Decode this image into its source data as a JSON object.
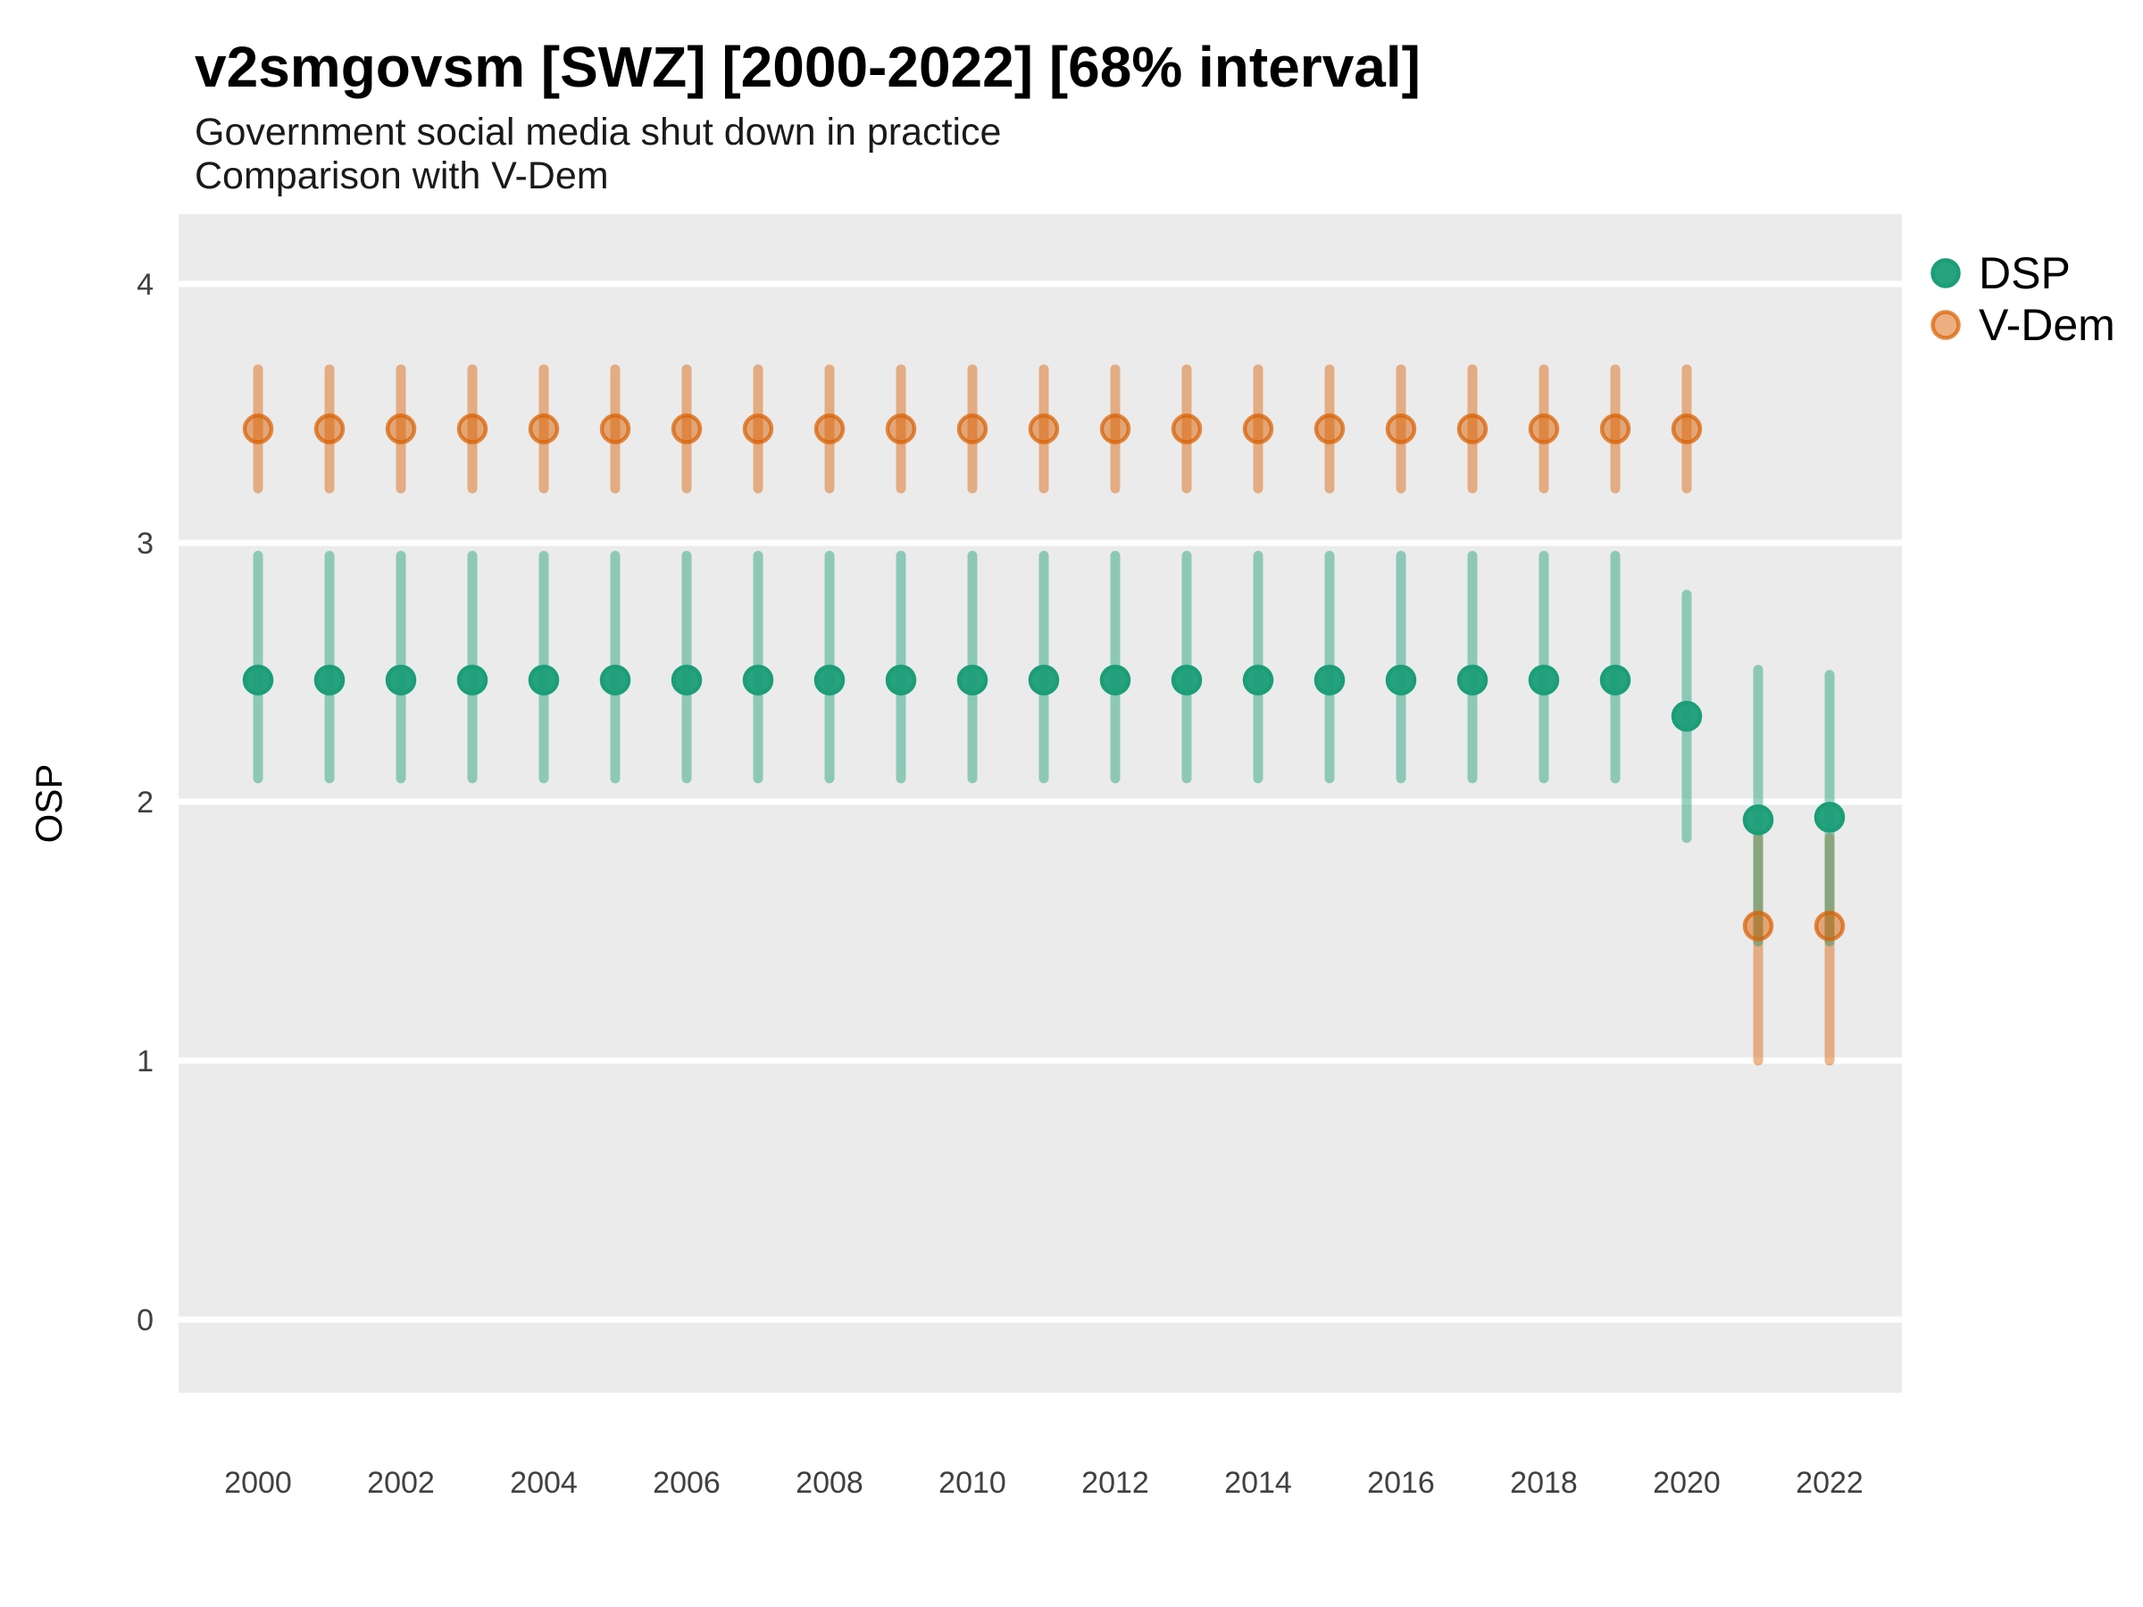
{
  "chart_data": {
    "type": "pointrange",
    "title": "v2smgovsm [SWZ] [2000-2022] [68% interval]",
    "subtitle": "Government social media shut down in practice",
    "subtitle2": "Comparison with V-Dem",
    "ylabel": "OSP",
    "interval": "68%",
    "country": "SWZ",
    "variable": "v2smgovsm",
    "x_tick_labels": [
      2000,
      2002,
      2004,
      2006,
      2008,
      2010,
      2012,
      2014,
      2016,
      2018,
      2020,
      2022
    ],
    "y_tick_labels": [
      4,
      3,
      2,
      1,
      0
    ],
    "x_range": [
      2000,
      2022
    ],
    "ylim": [
      -0.28,
      4.27
    ],
    "grid": "major-horizontal only, white on gray panel",
    "panel_bg": "#EBEBEB",
    "grid_color": "#FFFFFF",
    "tick_label_color": "#404040",
    "legend_position": "right-top",
    "legend": [
      {
        "label": "DSP",
        "base_color": "#1B9E77",
        "fill_alpha": 0.95,
        "ring_alpha": 1.0
      },
      {
        "label": "V-Dem",
        "base_color": "#D95F02",
        "fill_alpha": 0.5,
        "ring_alpha": 0.72
      }
    ],
    "series": [
      {
        "name": "V-Dem",
        "base_color": "#D95F02",
        "line_alpha": 0.45,
        "fill_alpha": 0.5,
        "ring_alpha": 0.72,
        "points": [
          {
            "year": 2000,
            "mid": 3.44,
            "lo": 3.21,
            "hi": 3.67
          },
          {
            "year": 2001,
            "mid": 3.44,
            "lo": 3.21,
            "hi": 3.67
          },
          {
            "year": 2002,
            "mid": 3.44,
            "lo": 3.21,
            "hi": 3.67
          },
          {
            "year": 2003,
            "mid": 3.44,
            "lo": 3.21,
            "hi": 3.67
          },
          {
            "year": 2004,
            "mid": 3.44,
            "lo": 3.21,
            "hi": 3.67
          },
          {
            "year": 2005,
            "mid": 3.44,
            "lo": 3.21,
            "hi": 3.67
          },
          {
            "year": 2006,
            "mid": 3.44,
            "lo": 3.21,
            "hi": 3.67
          },
          {
            "year": 2007,
            "mid": 3.44,
            "lo": 3.21,
            "hi": 3.67
          },
          {
            "year": 2008,
            "mid": 3.44,
            "lo": 3.21,
            "hi": 3.67
          },
          {
            "year": 2009,
            "mid": 3.44,
            "lo": 3.21,
            "hi": 3.67
          },
          {
            "year": 2010,
            "mid": 3.44,
            "lo": 3.21,
            "hi": 3.67
          },
          {
            "year": 2011,
            "mid": 3.44,
            "lo": 3.21,
            "hi": 3.67
          },
          {
            "year": 2012,
            "mid": 3.44,
            "lo": 3.21,
            "hi": 3.67
          },
          {
            "year": 2013,
            "mid": 3.44,
            "lo": 3.21,
            "hi": 3.67
          },
          {
            "year": 2014,
            "mid": 3.44,
            "lo": 3.21,
            "hi": 3.67
          },
          {
            "year": 2015,
            "mid": 3.44,
            "lo": 3.21,
            "hi": 3.67
          },
          {
            "year": 2016,
            "mid": 3.44,
            "lo": 3.21,
            "hi": 3.67
          },
          {
            "year": 2017,
            "mid": 3.44,
            "lo": 3.21,
            "hi": 3.67
          },
          {
            "year": 2018,
            "mid": 3.44,
            "lo": 3.21,
            "hi": 3.67
          },
          {
            "year": 2019,
            "mid": 3.44,
            "lo": 3.21,
            "hi": 3.67
          },
          {
            "year": 2020,
            "mid": 3.44,
            "lo": 3.21,
            "hi": 3.67
          },
          {
            "year": 2021,
            "mid": 1.52,
            "lo": 1.0,
            "hi": 1.86
          },
          {
            "year": 2022,
            "mid": 1.52,
            "lo": 1.0,
            "hi": 1.86
          }
        ]
      },
      {
        "name": "DSP",
        "base_color": "#1B9E77",
        "line_alpha": 0.45,
        "fill_alpha": 0.95,
        "ring_alpha": 1.0,
        "points": [
          {
            "year": 2000,
            "mid": 2.47,
            "lo": 2.09,
            "hi": 2.95
          },
          {
            "year": 2001,
            "mid": 2.47,
            "lo": 2.09,
            "hi": 2.95
          },
          {
            "year": 2002,
            "mid": 2.47,
            "lo": 2.09,
            "hi": 2.95
          },
          {
            "year": 2003,
            "mid": 2.47,
            "lo": 2.09,
            "hi": 2.95
          },
          {
            "year": 2004,
            "mid": 2.47,
            "lo": 2.09,
            "hi": 2.95
          },
          {
            "year": 2005,
            "mid": 2.47,
            "lo": 2.09,
            "hi": 2.95
          },
          {
            "year": 2006,
            "mid": 2.47,
            "lo": 2.09,
            "hi": 2.95
          },
          {
            "year": 2007,
            "mid": 2.47,
            "lo": 2.09,
            "hi": 2.95
          },
          {
            "year": 2008,
            "mid": 2.47,
            "lo": 2.09,
            "hi": 2.95
          },
          {
            "year": 2009,
            "mid": 2.47,
            "lo": 2.09,
            "hi": 2.95
          },
          {
            "year": 2010,
            "mid": 2.47,
            "lo": 2.09,
            "hi": 2.95
          },
          {
            "year": 2011,
            "mid": 2.47,
            "lo": 2.09,
            "hi": 2.95
          },
          {
            "year": 2012,
            "mid": 2.47,
            "lo": 2.09,
            "hi": 2.95
          },
          {
            "year": 2013,
            "mid": 2.47,
            "lo": 2.09,
            "hi": 2.95
          },
          {
            "year": 2014,
            "mid": 2.47,
            "lo": 2.09,
            "hi": 2.95
          },
          {
            "year": 2015,
            "mid": 2.47,
            "lo": 2.09,
            "hi": 2.95
          },
          {
            "year": 2016,
            "mid": 2.47,
            "lo": 2.09,
            "hi": 2.95
          },
          {
            "year": 2017,
            "mid": 2.47,
            "lo": 2.09,
            "hi": 2.95
          },
          {
            "year": 2018,
            "mid": 2.47,
            "lo": 2.09,
            "hi": 2.95
          },
          {
            "year": 2019,
            "mid": 2.47,
            "lo": 2.09,
            "hi": 2.95
          },
          {
            "year": 2020,
            "mid": 2.33,
            "lo": 1.86,
            "hi": 2.8
          },
          {
            "year": 2021,
            "mid": 1.93,
            "lo": 1.46,
            "hi": 2.51
          },
          {
            "year": 2022,
            "mid": 1.94,
            "lo": 1.46,
            "hi": 2.49
          }
        ]
      }
    ]
  }
}
